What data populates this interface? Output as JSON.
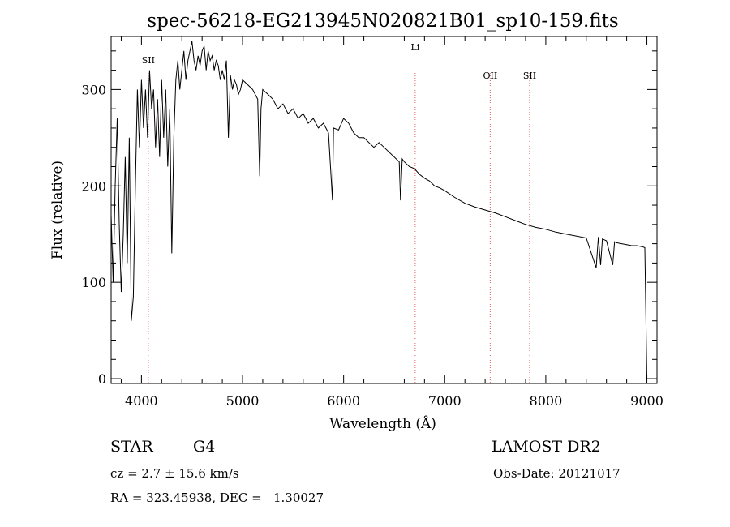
{
  "chart_data": {
    "type": "line",
    "title": "spec-56218-EG213945N020821B01_sp10-159.fits",
    "xlabel": "Wavelength (Å)",
    "ylabel": "Flux (relative)",
    "xlim": [
      3700,
      9100
    ],
    "ylim": [
      -5,
      355
    ],
    "xticks": [
      4000,
      5000,
      6000,
      7000,
      8000,
      9000
    ],
    "yticks": [
      0,
      100,
      200,
      300
    ],
    "grid": false,
    "line_color": "#000000",
    "marker_color": "#e06060",
    "series": [
      {
        "x": [
          3700,
          3720,
          3740,
          3760,
          3780,
          3800,
          3820,
          3840,
          3860,
          3880,
          3900,
          3920,
          3940,
          3960,
          3980,
          4000,
          4020,
          4040,
          4060,
          4080,
          4100,
          4120,
          4140,
          4160,
          4180,
          4200,
          4220,
          4240,
          4260,
          4280,
          4300,
          4320,
          4340,
          4360,
          4380,
          4400,
          4420,
          4440,
          4460,
          4480,
          4500,
          4520,
          4540,
          4560,
          4580,
          4600,
          4620,
          4640,
          4660,
          4680,
          4700,
          4720,
          4740,
          4760,
          4780,
          4800,
          4820,
          4840,
          4860,
          4880,
          4900,
          4920,
          4940,
          4960,
          4980,
          5000,
          5050,
          5100,
          5150,
          5170,
          5183,
          5200,
          5250,
          5300,
          5350,
          5400,
          5450,
          5500,
          5550,
          5600,
          5650,
          5700,
          5750,
          5800,
          5850,
          5890,
          5900,
          5950,
          6000,
          6050,
          6100,
          6150,
          6200,
          6250,
          6300,
          6350,
          6400,
          6450,
          6500,
          6550,
          6563,
          6580,
          6600,
          6650,
          6700,
          6750,
          6800,
          6850,
          6900,
          6950,
          7000,
          7100,
          7200,
          7300,
          7400,
          7500,
          7600,
          7700,
          7800,
          7900,
          8000,
          8100,
          8200,
          8300,
          8400,
          8498,
          8520,
          8542,
          8560,
          8600,
          8662,
          8680,
          8700,
          8750,
          8800,
          8850,
          8900,
          8950,
          8980,
          9000
        ],
        "y": [
          170,
          100,
          200,
          270,
          160,
          90,
          150,
          230,
          120,
          250,
          60,
          85,
          200,
          300,
          240,
          310,
          260,
          300,
          250,
          320,
          280,
          300,
          240,
          290,
          230,
          310,
          250,
          300,
          220,
          280,
          130,
          250,
          310,
          330,
          300,
          320,
          340,
          310,
          330,
          340,
          350,
          330,
          320,
          335,
          325,
          340,
          345,
          320,
          340,
          330,
          335,
          320,
          330,
          325,
          310,
          320,
          310,
          330,
          250,
          315,
          300,
          310,
          305,
          295,
          300,
          310,
          305,
          300,
          290,
          210,
          280,
          300,
          295,
          290,
          280,
          285,
          275,
          280,
          270,
          275,
          265,
          270,
          260,
          265,
          255,
          185,
          260,
          258,
          270,
          265,
          255,
          250,
          250,
          245,
          240,
          245,
          240,
          235,
          230,
          225,
          185,
          228,
          225,
          220,
          218,
          212,
          208,
          205,
          200,
          198,
          195,
          188,
          182,
          178,
          175,
          172,
          168,
          164,
          160,
          157,
          155,
          152,
          150,
          148,
          146,
          115,
          147,
          118,
          145,
          143,
          118,
          142,
          141,
          140,
          139,
          138,
          138,
          137,
          136,
          0
        ]
      }
    ],
    "annotations": [
      {
        "label": "SII",
        "x": 4068
      },
      {
        "label": "Li",
        "x": 6708
      },
      {
        "label": "OII",
        "x": 7450
      },
      {
        "label": "SII",
        "x": 7840
      }
    ]
  },
  "info": {
    "obj_class": "STAR",
    "obj_subclass": "G4",
    "release": "LAMOST DR2",
    "cz": "cz = 2.7 ± 15.6 km/s",
    "obs_date": "Obs-Date: 20121017",
    "radec": "RA = 323.45938, DEC =   1.30027"
  }
}
